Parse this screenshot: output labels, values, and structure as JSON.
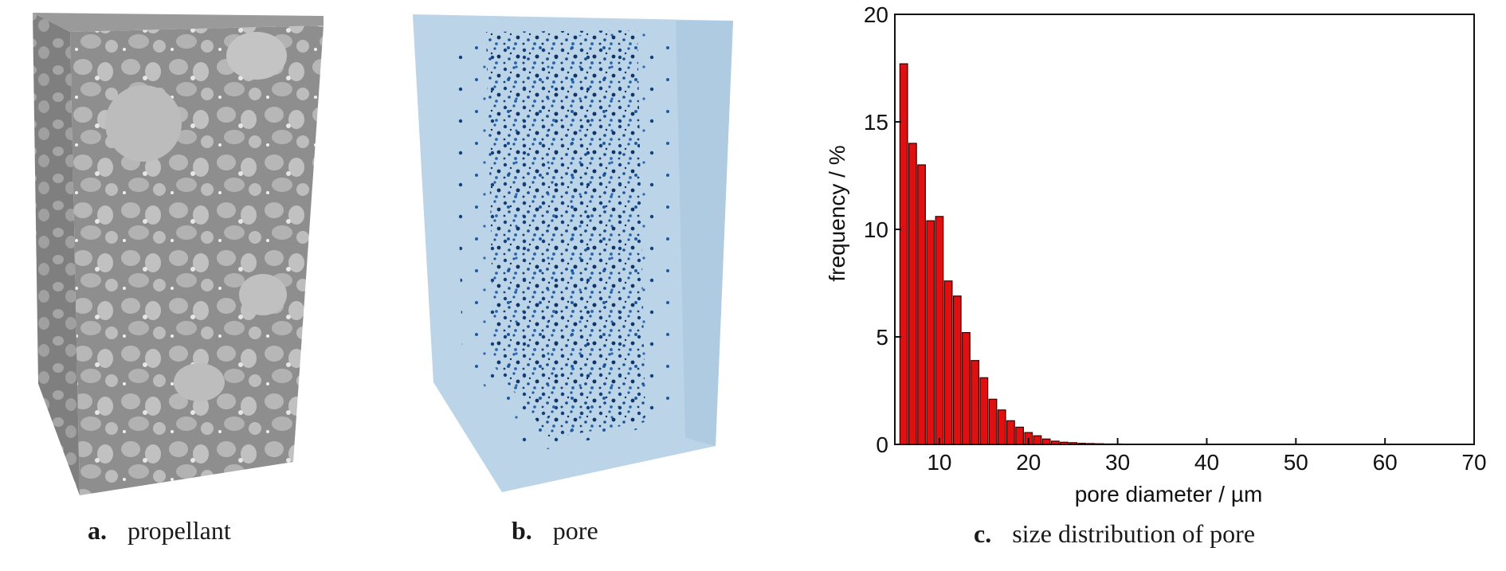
{
  "panels": {
    "a": {
      "letter": "a.",
      "label": "propellant"
    },
    "b": {
      "letter": "b.",
      "label": "pore"
    },
    "c": {
      "letter": "c.",
      "label": "size distribution of pore"
    }
  },
  "colors": {
    "bar_fill": "#e01010",
    "bar_stroke": "#3a0000",
    "propellant_base": "#a9a9a9",
    "pore_volume": "#bcd4e8",
    "pore_dots": "#13407a"
  },
  "chart_data": {
    "type": "bar",
    "title": "",
    "xlabel": "pore diameter / µm",
    "ylabel": "frequency / %",
    "xlim": [
      5,
      70
    ],
    "ylim": [
      0,
      20
    ],
    "x_ticks": [
      10,
      20,
      30,
      40,
      50,
      60,
      70
    ],
    "y_ticks": [
      0,
      5,
      10,
      15,
      20
    ],
    "bin_width": 1,
    "x": [
      6,
      7,
      8,
      9,
      10,
      11,
      12,
      13,
      14,
      15,
      16,
      17,
      18,
      19,
      20,
      21,
      22,
      23,
      24,
      25,
      26,
      27,
      28,
      29,
      30,
      31,
      32,
      33,
      34,
      35,
      36,
      37,
      38,
      39,
      40,
      41,
      42,
      43,
      44,
      45
    ],
    "values": [
      17.7,
      14.0,
      13.0,
      10.4,
      10.6,
      7.6,
      6.9,
      5.2,
      3.9,
      3.1,
      2.1,
      1.6,
      1.1,
      0.8,
      0.55,
      0.4,
      0.25,
      0.15,
      0.1,
      0.08,
      0.05,
      0.04,
      0.03,
      0.02,
      0.02,
      0.01,
      0.01,
      0.01,
      0.005,
      0.005,
      0.005,
      0.003,
      0.003,
      0.002,
      0.002,
      0.001,
      0.001,
      0.001,
      0.001,
      0.001
    ],
    "grid": false,
    "legend": "none"
  }
}
